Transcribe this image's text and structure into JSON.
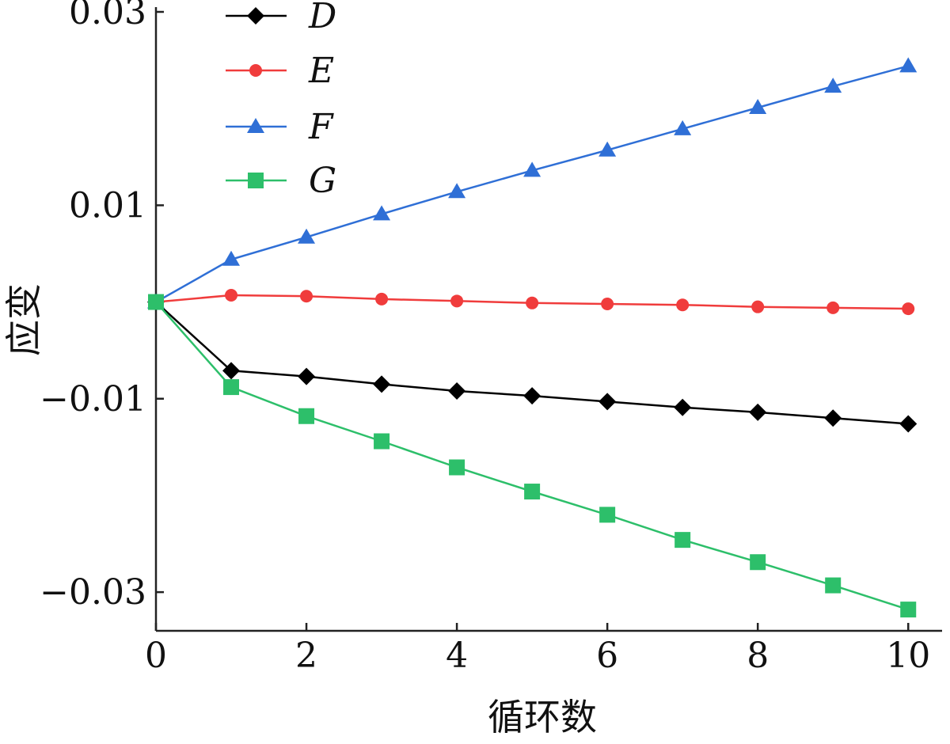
{
  "chart_data": {
    "type": "line",
    "title": "",
    "xlabel": "循环数",
    "ylabel": "应变",
    "xlim": [
      0,
      10.45
    ],
    "ylim": [
      -0.034,
      0.03
    ],
    "xticks": [
      0,
      2,
      4,
      6,
      8,
      10
    ],
    "xtick_labels": [
      "0",
      "2",
      "4",
      "6",
      "8",
      "10"
    ],
    "yticks": [
      0.03,
      0.01,
      -0.01,
      -0.03
    ],
    "ytick_labels": [
      "0.03",
      "0.01",
      "−0.01",
      "−0.03"
    ],
    "grid": false,
    "legend_position": "top-left",
    "x": [
      0,
      1,
      2,
      3,
      4,
      5,
      6,
      7,
      8,
      9,
      10
    ],
    "series": [
      {
        "name": "D",
        "color": "#000000",
        "marker": "diamond",
        "values": [
          0,
          -0.0071,
          -0.0077,
          -0.0085,
          -0.0092,
          -0.0097,
          -0.0103,
          -0.0109,
          -0.0114,
          -0.012,
          -0.0126
        ]
      },
      {
        "name": "E",
        "color": "#f03c3c",
        "marker": "circle",
        "values": [
          0,
          0.0007,
          0.0006,
          0.0003,
          0.0001,
          -0.0001,
          -0.0002,
          -0.0003,
          -0.0005,
          -0.0006,
          -0.0007
        ]
      },
      {
        "name": "F",
        "color": "#2f6fd6",
        "marker": "triangle",
        "values": [
          0,
          0.0044,
          0.0067,
          0.0091,
          0.0114,
          0.0136,
          0.0157,
          0.0179,
          0.0201,
          0.0223,
          0.0244
        ]
      },
      {
        "name": "G",
        "color": "#2dbf6a",
        "marker": "square",
        "values": [
          0,
          -0.0088,
          -0.0118,
          -0.0144,
          -0.0171,
          -0.0196,
          -0.022,
          -0.0246,
          -0.0269,
          -0.0293,
          -0.0318
        ]
      }
    ]
  }
}
